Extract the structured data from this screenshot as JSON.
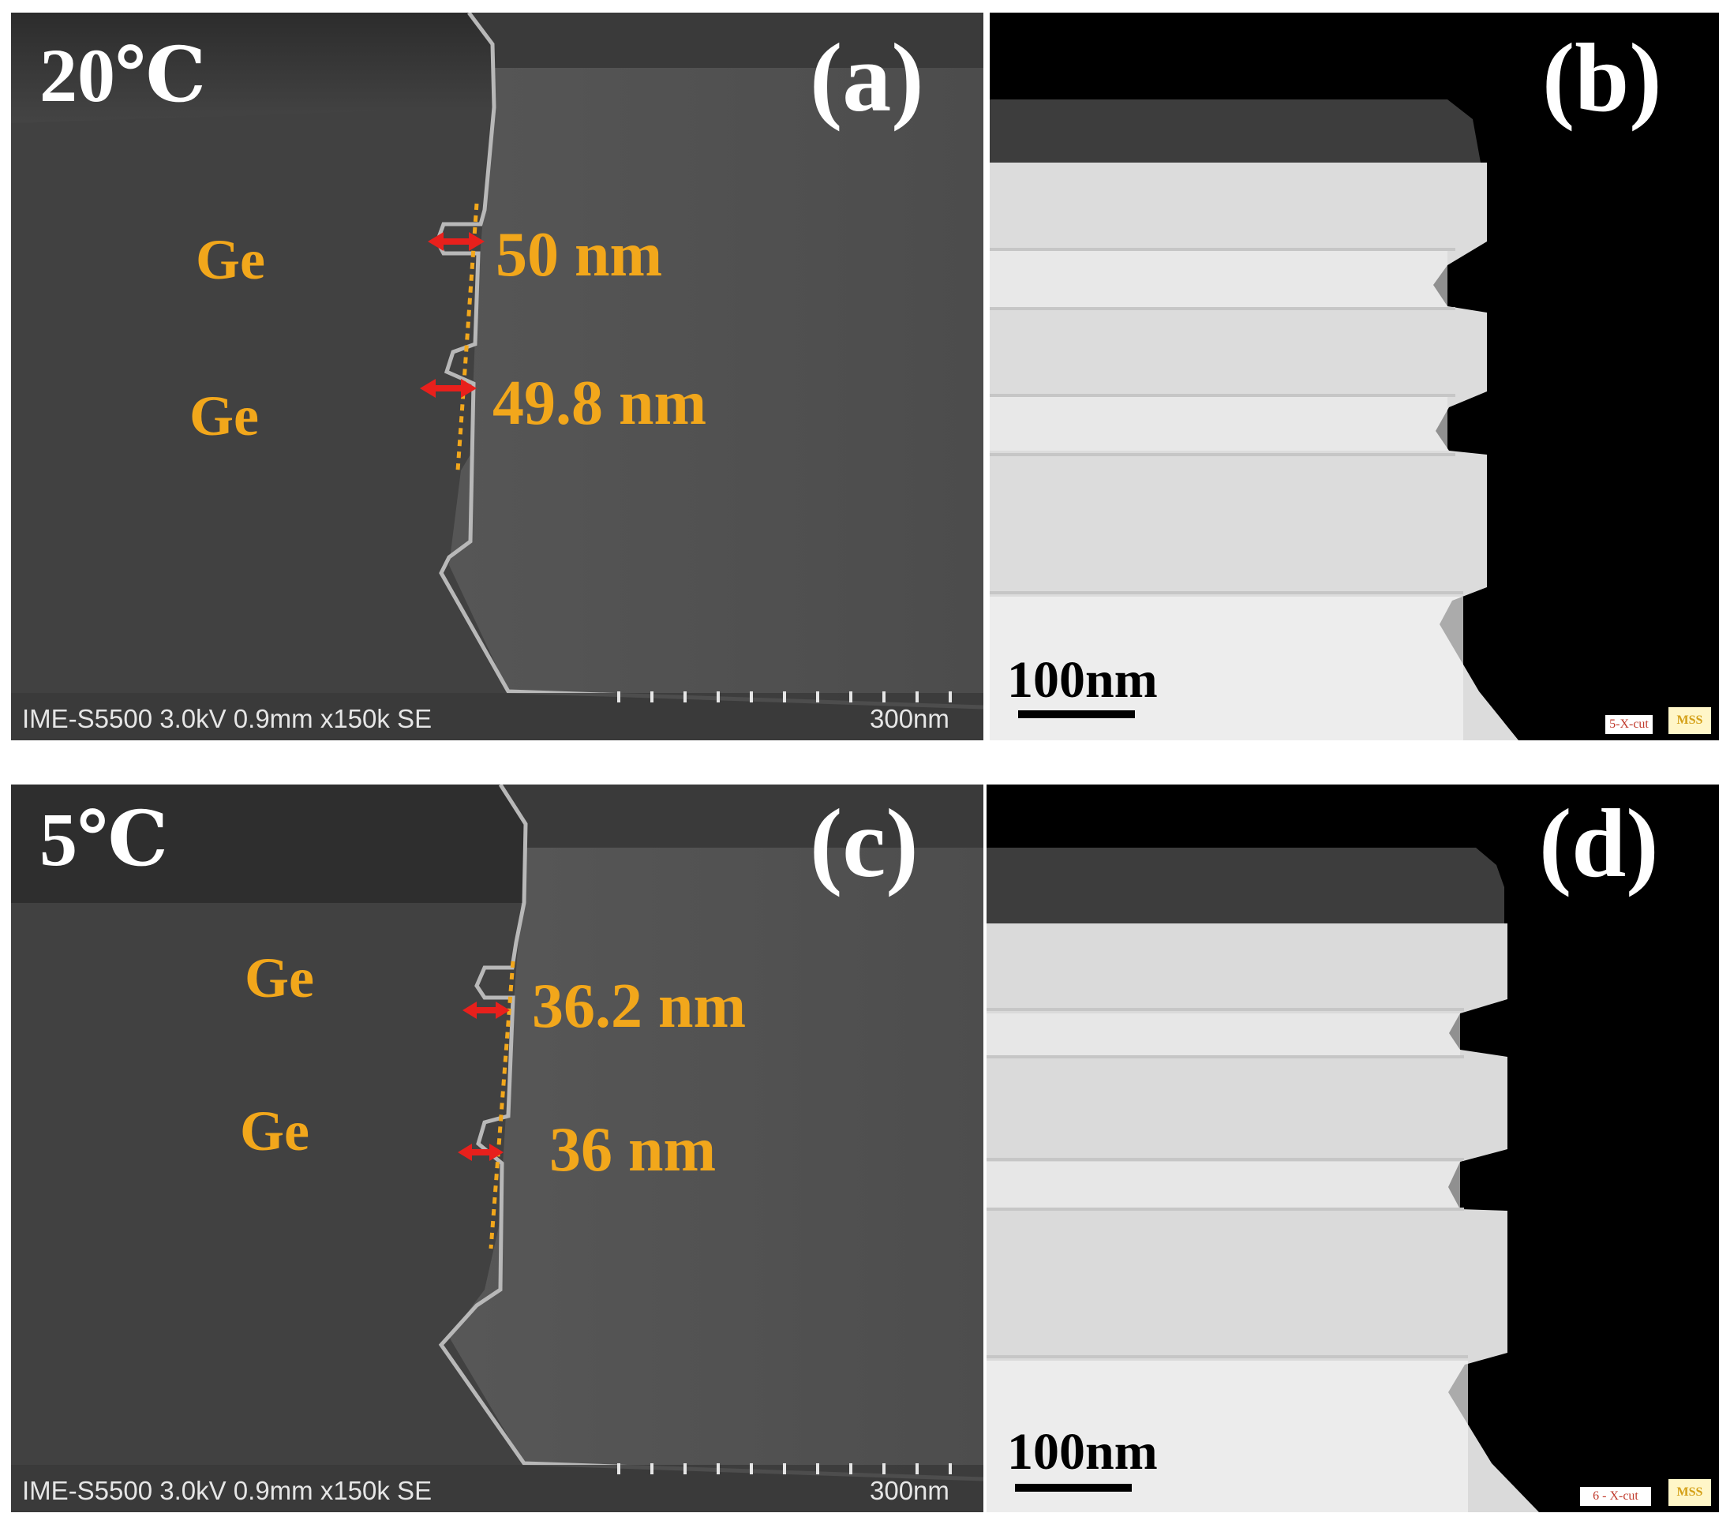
{
  "panels": {
    "a": {
      "letter": "(a)",
      "temperature": "20℃",
      "ge_labels": [
        "Ge",
        "Ge"
      ],
      "measurements": [
        "50 nm",
        "49.8 nm"
      ],
      "footer": "IME-S5500 3.0kV 0.9mm x150k SE",
      "scale": "300nm"
    },
    "b": {
      "letter": "(b)",
      "scale": "100nm",
      "tag": "5-X-cut",
      "logo": "MSS"
    },
    "c": {
      "letter": "(c)",
      "temperature": "5℃",
      "ge_labels": [
        "Ge",
        "Ge"
      ],
      "measurements": [
        "36.2 nm",
        "36 nm"
      ],
      "footer": "IME-S5500 3.0kV 0.9mm x150k SE",
      "scale": "300nm"
    },
    "d": {
      "letter": "(d)",
      "scale": "100nm",
      "tag": "6 - X-cut",
      "logo": "MSS"
    }
  },
  "colors": {
    "annotation": "#f2a71b",
    "arrow": "#e8201c",
    "sem_background": "#4a4a4a",
    "tem_background": "#000000"
  }
}
